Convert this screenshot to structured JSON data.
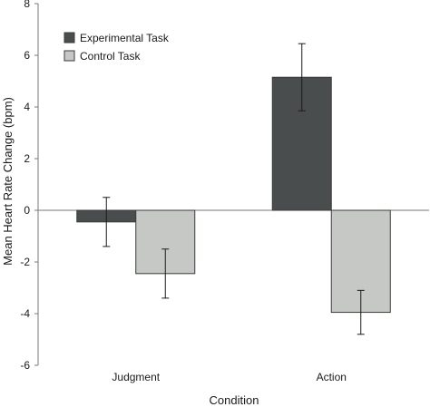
{
  "chart_data": {
    "type": "bar",
    "title": "",
    "xlabel": "Condition",
    "ylabel": "Mean Heart Rate Change (bpm)",
    "ylim": [
      -6,
      8
    ],
    "yticks": [
      "-6",
      "-4",
      "-2",
      "0",
      "2",
      "4",
      "6",
      "8"
    ],
    "categories": [
      "Judgment",
      "Action"
    ],
    "series": [
      {
        "name": "Experimental Task",
        "color": "#4a4d4d",
        "values": [
          -0.45,
          5.15
        ],
        "error": [
          0.95,
          1.3
        ]
      },
      {
        "name": "Control Task",
        "color": "#c6c8c6",
        "values": [
          -2.45,
          -3.95
        ],
        "error": [
          0.95,
          0.85
        ]
      }
    ],
    "legend": "top-left",
    "grid": false,
    "error_bars": true
  }
}
